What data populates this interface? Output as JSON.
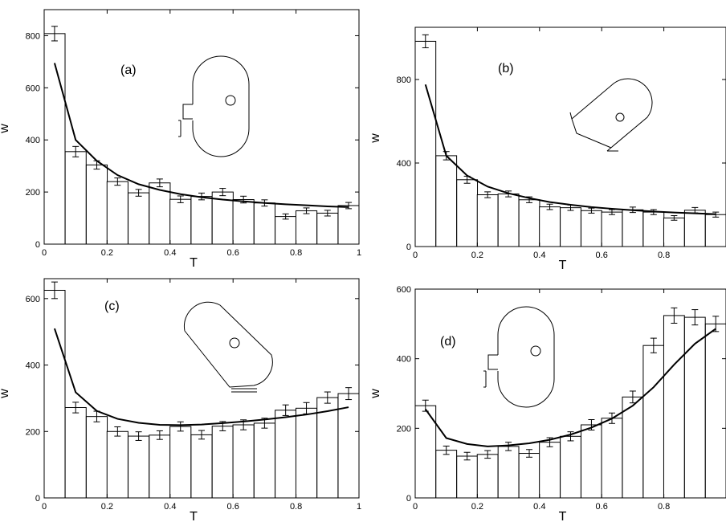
{
  "figure": {
    "panels": [
      "a",
      "b",
      "c",
      "d"
    ]
  },
  "chart_data": [
    {
      "type": "bar",
      "panel_label": "(a)",
      "xlabel": "T",
      "ylabel": "w",
      "xlim": [
        0,
        1
      ],
      "ylim": [
        0,
        900
      ],
      "xticks": [
        0,
        0.2,
        0.4,
        0.6,
        0.8,
        1
      ],
      "xtick_labels": [
        "0",
        "0.2",
        "0.4",
        "0.6",
        "0.8",
        "1"
      ],
      "yticks": [
        0,
        200,
        400,
        600,
        800
      ],
      "ytick_labels": [
        "0",
        "200",
        "400",
        "600",
        "800"
      ],
      "bin_width": 0.0667,
      "x": [
        0.033,
        0.1,
        0.167,
        0.233,
        0.3,
        0.367,
        0.433,
        0.5,
        0.567,
        0.633,
        0.7,
        0.767,
        0.833,
        0.9,
        0.967
      ],
      "values": [
        808,
        355,
        304,
        240,
        197,
        235,
        172,
        183,
        200,
        171,
        158,
        106,
        128,
        119,
        148
      ],
      "errors": [
        28,
        20,
        16,
        14,
        13,
        15,
        13,
        13,
        14,
        13,
        12,
        10,
        11,
        11,
        12
      ],
      "fit": {
        "x": [
          0.033,
          0.1,
          0.167,
          0.233,
          0.3,
          0.367,
          0.433,
          0.5,
          0.567,
          0.633,
          0.7,
          0.767,
          0.833,
          0.9,
          0.967
        ],
        "y": [
          695,
          400,
          320,
          265,
          230,
          208,
          192,
          180,
          171,
          164,
          158,
          153,
          149,
          145,
          142
        ]
      },
      "inset": "stadium-left-lead",
      "grid": false
    },
    {
      "type": "bar",
      "panel_label": "(b)",
      "xlabel": "T",
      "ylabel": "w",
      "xlim": [
        0,
        1
      ],
      "ylim": [
        0,
        1050
      ],
      "xticks": [
        0,
        0.2,
        0.4,
        0.6,
        0.8
      ],
      "xtick_labels": [
        "0",
        "0.2",
        "0.4",
        "0.6",
        "0.8"
      ],
      "yticks": [
        0,
        400,
        800
      ],
      "ytick_labels": [
        "0",
        "400",
        "800"
      ],
      "bin_width": 0.0667,
      "x": [
        0.033,
        0.1,
        0.167,
        0.233,
        0.3,
        0.367,
        0.433,
        0.5,
        0.567,
        0.633,
        0.7,
        0.767,
        0.833,
        0.9,
        0.967
      ],
      "values": [
        983,
        435,
        320,
        248,
        252,
        224,
        190,
        186,
        172,
        165,
        176,
        165,
        137,
        174,
        153
      ],
      "errors": [
        31,
        20,
        17,
        14,
        14,
        14,
        13,
        13,
        12,
        12,
        13,
        12,
        11,
        13,
        12
      ],
      "fit": {
        "x": [
          0.033,
          0.1,
          0.167,
          0.233,
          0.3,
          0.367,
          0.433,
          0.5,
          0.567,
          0.633,
          0.7,
          0.767,
          0.833,
          0.9,
          0.967
        ],
        "y": [
          776,
          435,
          340,
          287,
          255,
          232,
          213,
          200,
          189,
          181,
          174,
          168,
          163,
          159,
          155
        ]
      },
      "inset": "stadium-tilted-left",
      "grid": false
    },
    {
      "type": "bar",
      "panel_label": "(c)",
      "xlabel": "T",
      "ylabel": "w",
      "xlim": [
        0,
        1
      ],
      "ylim": [
        0,
        660
      ],
      "xticks": [
        0,
        0.2,
        0.4,
        0.6,
        0.8,
        1
      ],
      "xtick_labels": [
        "0",
        "0.2",
        "0.4",
        "0.6",
        "0.8",
        "1"
      ],
      "yticks": [
        0,
        200,
        400,
        600
      ],
      "ytick_labels": [
        "0",
        "200",
        "400",
        "600"
      ],
      "bin_width": 0.0667,
      "x": [
        0.033,
        0.1,
        0.167,
        0.233,
        0.3,
        0.367,
        0.433,
        0.5,
        0.567,
        0.633,
        0.7,
        0.767,
        0.833,
        0.9,
        0.967
      ],
      "values": [
        625,
        272,
        245,
        200,
        186,
        189,
        215,
        190,
        216,
        220,
        225,
        264,
        270,
        302,
        314
      ],
      "errors": [
        25,
        16,
        16,
        14,
        13,
        13,
        14,
        13,
        14,
        15,
        15,
        16,
        17,
        17,
        18
      ],
      "fit": {
        "x": [
          0.033,
          0.1,
          0.167,
          0.233,
          0.3,
          0.367,
          0.433,
          0.5,
          0.567,
          0.633,
          0.7,
          0.767,
          0.833,
          0.9,
          0.967
        ],
        "y": [
          510,
          318,
          262,
          238,
          226,
          220,
          219,
          221,
          225,
          230,
          236,
          243,
          251,
          261,
          273
        ]
      },
      "inset": "stadium-tilted-right",
      "grid": false
    },
    {
      "type": "bar",
      "panel_label": "(d)",
      "xlabel": "T",
      "ylabel": "w",
      "xlim": [
        0,
        1
      ],
      "ylim": [
        0,
        600
      ],
      "xticks": [
        0,
        0.2,
        0.4,
        0.6,
        0.8
      ],
      "xtick_labels": [
        "0",
        "0.2",
        "0.4",
        "0.6",
        "0.8"
      ],
      "yticks": [
        0,
        200,
        400,
        600
      ],
      "ytick_labels": [
        "0",
        "200",
        "400",
        "600"
      ],
      "bin_width": 0.0667,
      "x": [
        0.033,
        0.1,
        0.167,
        0.233,
        0.3,
        0.367,
        0.433,
        0.5,
        0.567,
        0.633,
        0.7,
        0.767,
        0.833,
        0.9,
        0.967
      ],
      "values": [
        265,
        137,
        120,
        125,
        148,
        128,
        160,
        177,
        210,
        229,
        290,
        438,
        524,
        519,
        500
      ],
      "errors": [
        16,
        12,
        11,
        11,
        12,
        11,
        13,
        13,
        15,
        15,
        17,
        21,
        22,
        22,
        22
      ],
      "fit": {
        "x": [
          0.033,
          0.1,
          0.167,
          0.233,
          0.3,
          0.367,
          0.433,
          0.5,
          0.567,
          0.633,
          0.7,
          0.767,
          0.833,
          0.9,
          0.967
        ],
        "y": [
          255,
          172,
          155,
          148,
          151,
          157,
          167,
          182,
          202,
          228,
          265,
          318,
          383,
          443,
          486
        ]
      },
      "inset": "stadium-left-lead",
      "grid": false
    }
  ]
}
